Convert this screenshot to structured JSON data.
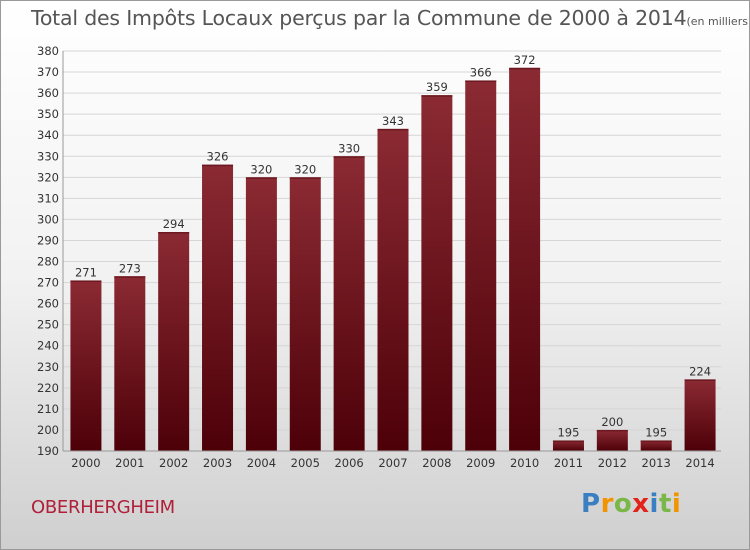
{
  "header": {
    "title": "Total des Impôts Locaux perçus par la Commune de 2000 à 2014",
    "unit": "(en milliers d'€)"
  },
  "footer": {
    "commune": "OBERHERGHEIM",
    "brand": [
      "P",
      "r",
      "o",
      "x",
      "i",
      "t",
      "i"
    ]
  },
  "colors": {
    "bar_top": "#8b2a33",
    "bar_bottom": "#4d0008",
    "grid": "#d6d6d6",
    "axis_text": "#333333",
    "commune": "#b0203a"
  },
  "chart_data": {
    "type": "bar",
    "title": "Total des Impôts Locaux perçus par la Commune de 2000 à 2014",
    "subtitle": "(en milliers d'€)",
    "categories": [
      "2000",
      "2001",
      "2002",
      "2003",
      "2004",
      "2005",
      "2006",
      "2007",
      "2008",
      "2009",
      "2010",
      "2011",
      "2012",
      "2013",
      "2014"
    ],
    "values": [
      271,
      273,
      294,
      326,
      320,
      320,
      330,
      343,
      359,
      366,
      372,
      195,
      200,
      195,
      224
    ],
    "ylim": [
      190,
      380
    ],
    "yticks": [
      190,
      200,
      210,
      220,
      230,
      240,
      250,
      260,
      270,
      280,
      290,
      300,
      310,
      320,
      330,
      340,
      350,
      360,
      370,
      380
    ],
    "grid": true,
    "data_labels": true
  }
}
